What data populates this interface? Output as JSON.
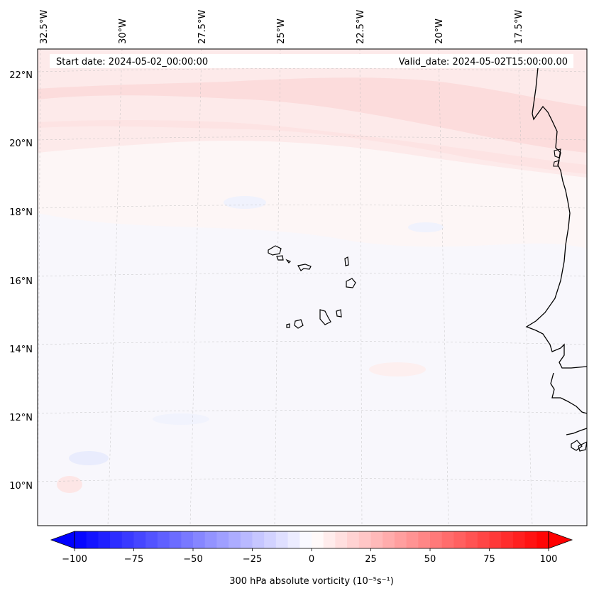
{
  "header": {
    "start_date": "Start date: 2024-05-02_00:00:00",
    "valid_date": "Valid_date: 2024-05-02T15:00:00.00"
  },
  "map": {
    "lon_labels": [
      "32.5°W",
      "30°W",
      "27.5°W",
      "25°W",
      "22.5°W",
      "20°W",
      "17.5°W"
    ],
    "lat_labels": [
      "22°N",
      "20°N",
      "18°N",
      "16°N",
      "14°N",
      "12°N",
      "10°N"
    ],
    "gridlines": true,
    "colors": {
      "positive_band": "#fde1e1",
      "background": "#fdf4f4",
      "negative_patch": "#eef2fd",
      "coastline": "#000000"
    }
  },
  "colorbar": {
    "title": "300 hPa absolute vorticity (10⁻⁵s⁻¹)",
    "ticks": [
      "−100",
      "−75",
      "−50",
      "−25",
      "0",
      "25",
      "50",
      "75",
      "100"
    ],
    "range": [
      -100,
      100
    ],
    "colormap": "bwr",
    "low_color": "#0000ff",
    "mid_color": "#ffffff",
    "high_color": "#ff0000"
  }
}
